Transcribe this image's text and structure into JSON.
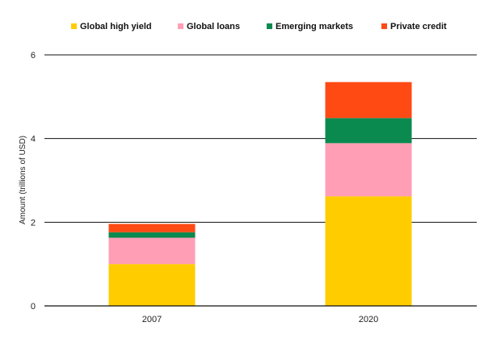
{
  "chart_data": {
    "type": "bar",
    "stacked": true,
    "title": "",
    "xlabel": "",
    "ylabel": "Amount (trillions of USD)",
    "ylim": [
      0,
      6
    ],
    "yticks": [
      0,
      2,
      4,
      6
    ],
    "grid": true,
    "legend_position": "top",
    "categories": [
      "2007",
      "2020"
    ],
    "series": [
      {
        "name": "Global high yield",
        "color": "#ffcc00",
        "values": [
          1.0,
          2.62
        ]
      },
      {
        "name": "Global loans",
        "color": "#ff9eb5",
        "values": [
          0.63,
          1.27
        ]
      },
      {
        "name": "Emerging markets",
        "color": "#0a8a4f",
        "values": [
          0.13,
          0.6
        ]
      },
      {
        "name": "Private credit",
        "color": "#ff4a14",
        "values": [
          0.2,
          0.86
        ]
      }
    ]
  }
}
